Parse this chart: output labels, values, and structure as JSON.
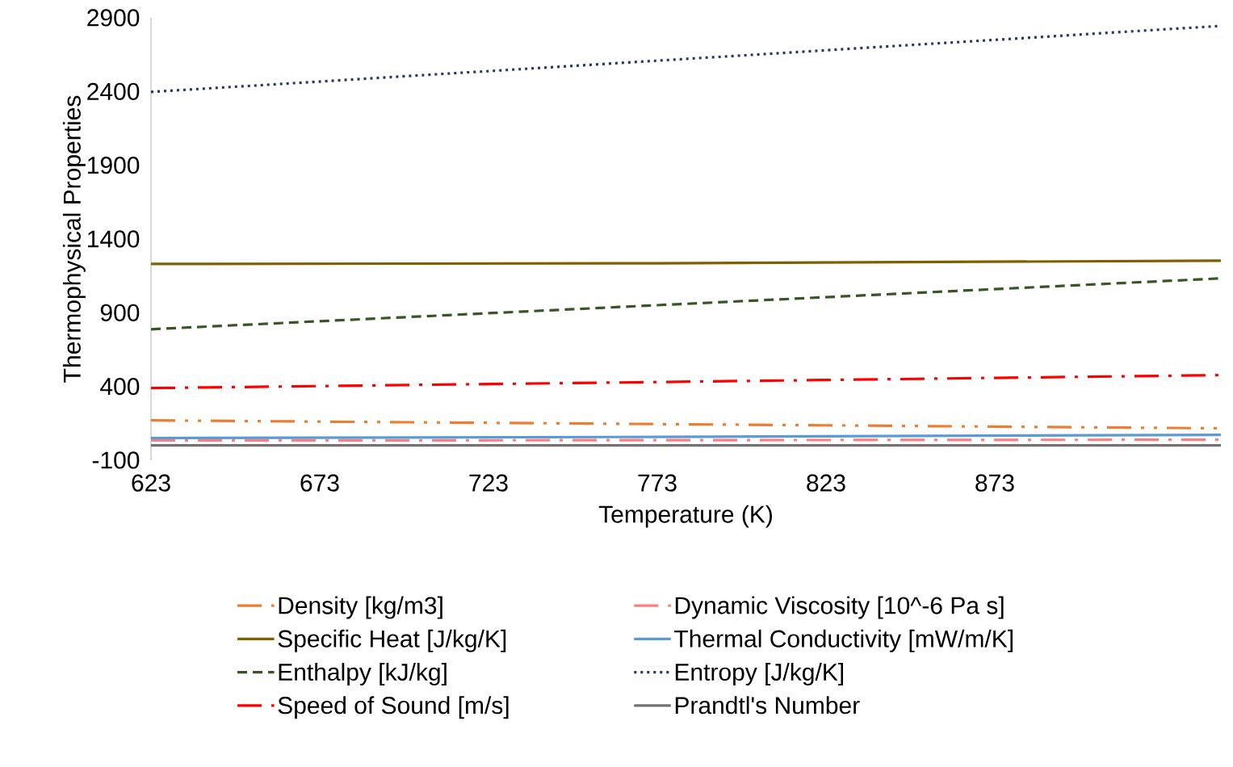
{
  "chart_data": {
    "type": "line",
    "xlabel": "Temperature (K)",
    "ylabel": "Thermophysical Properties",
    "xlim": [
      623,
      940
    ],
    "xticks": [
      623,
      673,
      723,
      773,
      823,
      873
    ],
    "ylim": [
      -100,
      2900
    ],
    "yticks": [
      -100,
      400,
      900,
      1400,
      1900,
      2400,
      2900
    ],
    "grid": false,
    "legend": "bottom",
    "x": [
      623,
      773,
      940
    ],
    "series": [
      {
        "name": "Density [kg/m3]",
        "color": "#ed7d31",
        "line_style": "dashdotdot",
        "values": [
          170,
          145,
          116
        ]
      },
      {
        "name": "Specific Heat [J/kg/K]",
        "color": "#7f6000",
        "line_style": "solid",
        "values": [
          1231,
          1235,
          1253
        ]
      },
      {
        "name": "Enthalpy [kJ/kg]",
        "color": "#375623",
        "line_style": "dashed",
        "values": [
          788,
          951,
          1133
        ]
      },
      {
        "name": "Speed of Sound [m/s]",
        "color": "#ff0000",
        "line_style": "dashdot",
        "values": [
          389,
          430,
          477
        ]
      },
      {
        "name": "Dynamic Viscosity [10^-6 Pa s]",
        "color": "#ff7c80",
        "line_style": "dashdot",
        "values": [
          34,
          36,
          39
        ]
      },
      {
        "name": "Thermal Conductivity [mW/m/K]",
        "color": "#5b9bd5",
        "line_style": "solid",
        "values": [
          50,
          58,
          72
        ]
      },
      {
        "name": "Entropy [J/kg/K]",
        "color": "#203864",
        "line_style": "dotted",
        "values": [
          2397,
          2609,
          2845
        ]
      },
      {
        "name": "Prandtl's Number",
        "color": "#767171",
        "line_style": "solid",
        "values": [
          1,
          1,
          1
        ]
      }
    ]
  }
}
